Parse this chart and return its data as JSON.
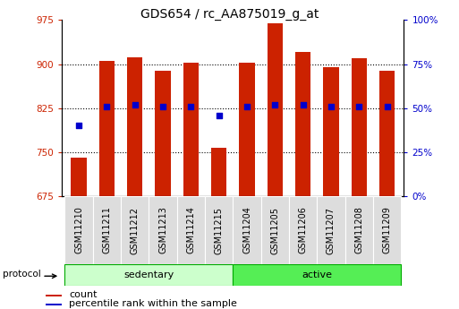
{
  "title": "GDS654 / rc_AA875019_g_at",
  "samples": [
    "GSM11210",
    "GSM11211",
    "GSM11212",
    "GSM11213",
    "GSM11214",
    "GSM11215",
    "GSM11204",
    "GSM11205",
    "GSM11206",
    "GSM11207",
    "GSM11208",
    "GSM11209"
  ],
  "counts": [
    740,
    905,
    912,
    888,
    902,
    757,
    903,
    970,
    920,
    895,
    910,
    888
  ],
  "percentiles": [
    40,
    51,
    52,
    51,
    51,
    46,
    51,
    52,
    52,
    51,
    51,
    51
  ],
  "ylim_left": [
    675,
    975
  ],
  "ylim_right": [
    0,
    100
  ],
  "yticks_left": [
    675,
    750,
    825,
    900,
    975
  ],
  "yticks_right": [
    0,
    25,
    50,
    75,
    100
  ],
  "yticklabels_right": [
    "0%",
    "25%",
    "50%",
    "75%",
    "100%"
  ],
  "bar_color": "#cc2200",
  "dot_color": "#0000cc",
  "bg_color": "#ffffff",
  "plot_bg_color": "#ffffff",
  "grid_color": "#000000",
  "sedentary_count": 6,
  "active_count": 6,
  "sedentary_color": "#ccffcc",
  "active_color": "#55ee55",
  "active_border_color": "#00aa00",
  "label_color_left": "#cc2200",
  "label_color_right": "#0000cc",
  "protocol_label": "protocol",
  "sedentary_label": "sedentary",
  "active_label": "active",
  "legend_count": "count",
  "legend_percentile": "percentile rank within the sample",
  "title_fontsize": 10,
  "tick_fontsize": 7.5,
  "sample_fontsize": 7,
  "bar_width": 0.55,
  "xtick_cell_color": "#dddddd"
}
